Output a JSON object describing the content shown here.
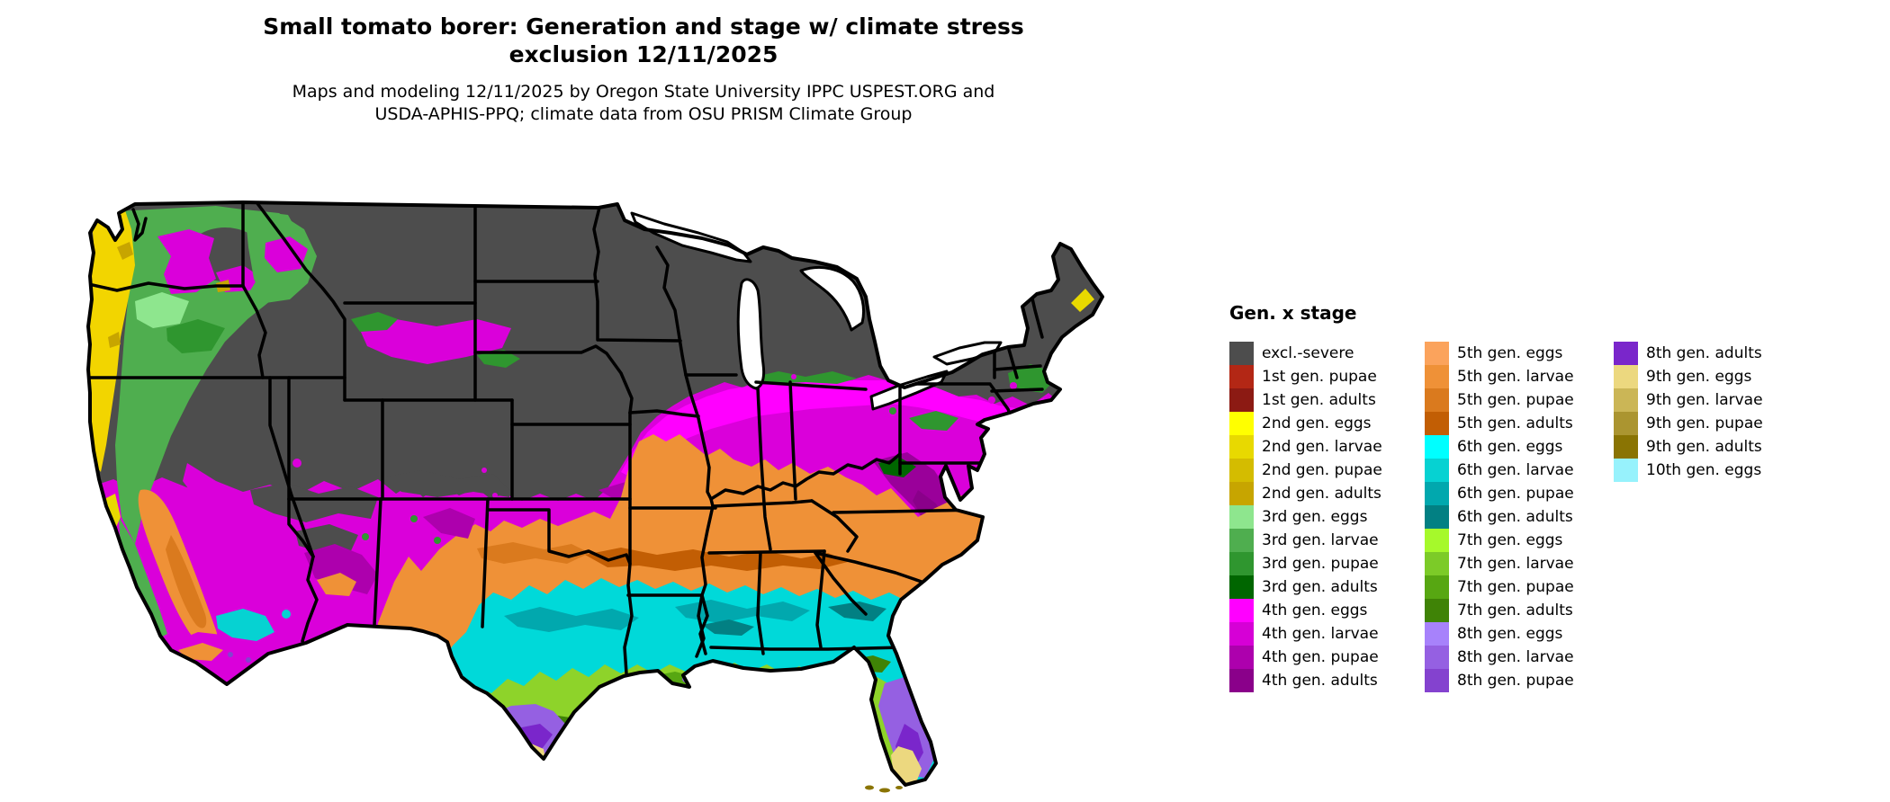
{
  "title": {
    "line1": "Small tomato borer: Generation and stage w/ climate stress",
    "line2": "exclusion 12/11/2025"
  },
  "subtitle": {
    "line1": "Maps and modeling 12/11/2025 by Oregon State University IPPC USPEST.ORG and",
    "line2": "USDA-APHIS-PPQ; climate data from OSU PRISM Climate Group"
  },
  "legend": {
    "title": "Gen. x stage",
    "columns": [
      {
        "rows": [
          {
            "label": "excl.-severe",
            "color": "#4d4d4d"
          },
          {
            "label": "1st gen. pupae",
            "color": "#b32715"
          },
          {
            "label": "1st gen. adults",
            "color": "#8c1a13"
          },
          {
            "label": "2nd gen. eggs",
            "color": "#ffff00"
          },
          {
            "label": "2nd gen. larvae",
            "color": "#e8d900"
          },
          {
            "label": "2nd gen. pupae",
            "color": "#d4bc00"
          },
          {
            "label": "2nd gen. adults",
            "color": "#c7a500"
          },
          {
            "label": "3rd gen. eggs",
            "color": "#8ee68e"
          },
          {
            "label": "3rd gen. larvae",
            "color": "#4fae4f"
          },
          {
            "label": "3rd gen. pupae",
            "color": "#2f962f"
          },
          {
            "label": "3rd gen. adults",
            "color": "#006600"
          },
          {
            "label": "4th gen. eggs",
            "color": "#ff00ff"
          },
          {
            "label": "4th gen. larvae",
            "color": "#d600d6"
          },
          {
            "label": "4th gen. pupae",
            "color": "#ad00ad"
          },
          {
            "label": "4th gen. adults",
            "color": "#8a008a"
          }
        ]
      },
      {
        "rows": [
          {
            "label": "5th gen. eggs",
            "color": "#fba35c"
          },
          {
            "label": "5th gen. larvae",
            "color": "#ef9137"
          },
          {
            "label": "5th gen. pupae",
            "color": "#da7a1e"
          },
          {
            "label": "5th gen. adults",
            "color": "#c25e04"
          },
          {
            "label": "6th gen. eggs",
            "color": "#00ffff"
          },
          {
            "label": "6th gen. larvae",
            "color": "#06d2d2"
          },
          {
            "label": "6th gen. pupae",
            "color": "#01a8ae"
          },
          {
            "label": "6th gen. adults",
            "color": "#028083"
          },
          {
            "label": "7th gen. eggs",
            "color": "#a6f92b"
          },
          {
            "label": "7th gen. larvae",
            "color": "#7ccb28"
          },
          {
            "label": "7th gen. pupae",
            "color": "#57a712"
          },
          {
            "label": "7th gen. adults",
            "color": "#3f8306"
          },
          {
            "label": "8th gen. eggs",
            "color": "#a782fb"
          },
          {
            "label": "8th gen. larvae",
            "color": "#9560e2"
          },
          {
            "label": "8th gen. pupae",
            "color": "#8442cf"
          }
        ]
      },
      {
        "rows": [
          {
            "label": "8th gen. adults",
            "color": "#7a26cb"
          },
          {
            "label": "9th gen. eggs",
            "color": "#ecd87f"
          },
          {
            "label": "9th gen. larvae",
            "color": "#cbb656"
          },
          {
            "label": "9th gen. pupae",
            "color": "#ab9530"
          },
          {
            "label": "9th gen. adults",
            "color": "#8a7403"
          },
          {
            "label": "10th gen. eggs",
            "color": "#97f2fc"
          }
        ]
      }
    ]
  }
}
